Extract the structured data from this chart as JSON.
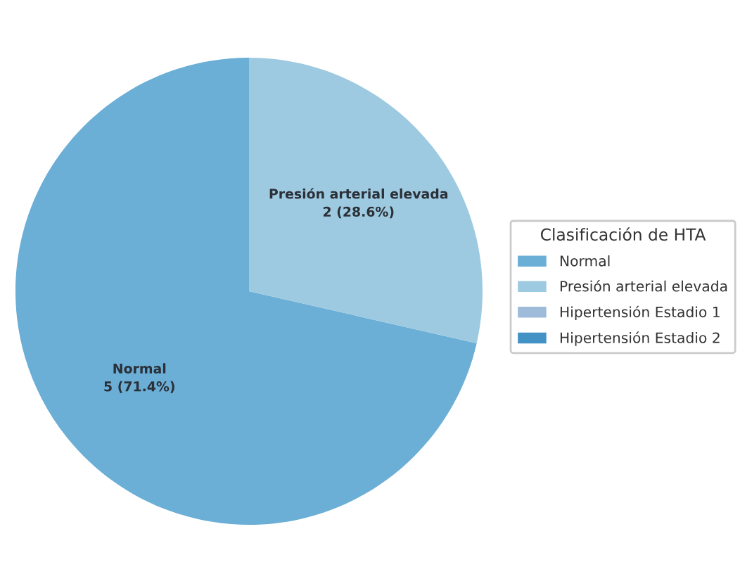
{
  "chart_data": {
    "type": "pie",
    "legend_title": "Clasificación de HTA",
    "categories": [
      "Normal",
      "Presión arterial elevada",
      "Hipertensión Estadio 1",
      "Hipertensión Estadio 2"
    ],
    "values": [
      5,
      2,
      0,
      0
    ],
    "colors": [
      "#6baed6",
      "#9ecae1",
      "#9ebcda",
      "#4292c6"
    ],
    "value_labels": [
      "5 (71.4%)",
      "2 (28.6%)",
      null,
      null
    ],
    "legend": "right"
  }
}
